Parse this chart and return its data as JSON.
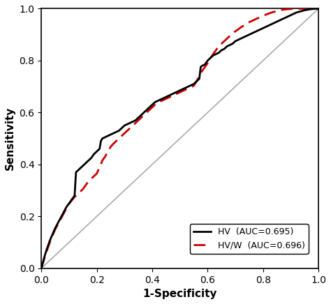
{
  "title": "",
  "xlabel": "1-Specificity",
  "ylabel": "Sensitivity",
  "xlim": [
    0.0,
    1.0
  ],
  "ylim": [
    0.0,
    1.0
  ],
  "xticks": [
    0.0,
    0.2,
    0.4,
    0.6,
    0.8,
    1.0
  ],
  "yticks": [
    0.0,
    0.2,
    0.4,
    0.6,
    0.8,
    1.0
  ],
  "diagonal_color": "#aaaaaa",
  "hv_color": "#000000",
  "hvw_color": "#cc0000",
  "hv_label": "HV  (AUC=0.695)",
  "hvw_label": "HV/W  (AUC=0.696)",
  "hv_linewidth": 2.0,
  "hvw_linewidth": 2.0,
  "background_color": "#ffffff",
  "legend_fontsize": 9,
  "axis_fontsize": 11,
  "tick_fontsize": 10,
  "hv_x": [
    0.0,
    0.005,
    0.01,
    0.015,
    0.02,
    0.025,
    0.03,
    0.035,
    0.04,
    0.045,
    0.05,
    0.06,
    0.07,
    0.08,
    0.09,
    0.1,
    0.11,
    0.12,
    0.125,
    0.13,
    0.14,
    0.15,
    0.16,
    0.17,
    0.175,
    0.18,
    0.19,
    0.2,
    0.21,
    0.215,
    0.22,
    0.23,
    0.24,
    0.25,
    0.26,
    0.27,
    0.28,
    0.29,
    0.3,
    0.31,
    0.32,
    0.33,
    0.34,
    0.35,
    0.36,
    0.37,
    0.38,
    0.39,
    0.4,
    0.41,
    0.42,
    0.43,
    0.44,
    0.45,
    0.46,
    0.47,
    0.48,
    0.49,
    0.5,
    0.51,
    0.52,
    0.53,
    0.54,
    0.55,
    0.56,
    0.57,
    0.575,
    0.58,
    0.59,
    0.6,
    0.61,
    0.62,
    0.63,
    0.64,
    0.65,
    0.66,
    0.67,
    0.68,
    0.69,
    0.7,
    0.71,
    0.72,
    0.73,
    0.74,
    0.75,
    0.76,
    0.77,
    0.78,
    0.79,
    0.8,
    0.81,
    0.82,
    0.83,
    0.84,
    0.85,
    0.86,
    0.87,
    0.88,
    0.89,
    0.9,
    0.91,
    0.92,
    0.93,
    0.94,
    0.95,
    0.96,
    0.97,
    0.98,
    0.99,
    1.0
  ],
  "hv_y": [
    0.0,
    0.02,
    0.04,
    0.058,
    0.075,
    0.09,
    0.105,
    0.118,
    0.13,
    0.143,
    0.155,
    0.175,
    0.195,
    0.215,
    0.235,
    0.25,
    0.265,
    0.28,
    0.37,
    0.375,
    0.385,
    0.395,
    0.405,
    0.415,
    0.42,
    0.425,
    0.44,
    0.45,
    0.46,
    0.49,
    0.5,
    0.505,
    0.51,
    0.515,
    0.52,
    0.525,
    0.53,
    0.54,
    0.55,
    0.555,
    0.56,
    0.565,
    0.57,
    0.58,
    0.59,
    0.6,
    0.61,
    0.62,
    0.63,
    0.64,
    0.645,
    0.65,
    0.655,
    0.66,
    0.665,
    0.67,
    0.675,
    0.68,
    0.685,
    0.69,
    0.695,
    0.7,
    0.705,
    0.71,
    0.72,
    0.73,
    0.775,
    0.78,
    0.785,
    0.8,
    0.81,
    0.82,
    0.825,
    0.83,
    0.84,
    0.845,
    0.855,
    0.86,
    0.865,
    0.875,
    0.88,
    0.885,
    0.89,
    0.895,
    0.9,
    0.905,
    0.91,
    0.915,
    0.92,
    0.925,
    0.93,
    0.935,
    0.94,
    0.945,
    0.95,
    0.955,
    0.96,
    0.965,
    0.97,
    0.975,
    0.98,
    0.985,
    0.988,
    0.991,
    0.994,
    0.996,
    0.998,
    0.999,
    1.0,
    1.0
  ],
  "hvw_x": [
    0.0,
    0.005,
    0.01,
    0.015,
    0.02,
    0.025,
    0.03,
    0.035,
    0.04,
    0.045,
    0.05,
    0.06,
    0.07,
    0.08,
    0.09,
    0.1,
    0.11,
    0.12,
    0.13,
    0.14,
    0.15,
    0.16,
    0.17,
    0.18,
    0.19,
    0.2,
    0.21,
    0.215,
    0.22,
    0.23,
    0.24,
    0.25,
    0.26,
    0.27,
    0.28,
    0.29,
    0.3,
    0.31,
    0.32,
    0.33,
    0.34,
    0.35,
    0.36,
    0.37,
    0.38,
    0.39,
    0.4,
    0.41,
    0.42,
    0.43,
    0.44,
    0.45,
    0.46,
    0.47,
    0.48,
    0.49,
    0.5,
    0.51,
    0.52,
    0.53,
    0.54,
    0.55,
    0.56,
    0.57,
    0.58,
    0.59,
    0.6,
    0.61,
    0.62,
    0.63,
    0.64,
    0.65,
    0.66,
    0.67,
    0.68,
    0.69,
    0.7,
    0.71,
    0.72,
    0.73,
    0.74,
    0.75,
    0.76,
    0.77,
    0.78,
    0.79,
    0.8,
    0.81,
    0.82,
    0.83,
    0.84,
    0.85,
    0.86,
    0.87,
    0.88,
    0.89,
    0.9,
    0.91,
    0.92,
    0.93,
    0.94,
    0.95,
    0.96,
    0.97,
    0.98,
    0.99,
    1.0
  ],
  "hvw_y": [
    0.0,
    0.018,
    0.035,
    0.052,
    0.068,
    0.083,
    0.098,
    0.112,
    0.125,
    0.138,
    0.15,
    0.17,
    0.19,
    0.21,
    0.23,
    0.248,
    0.262,
    0.275,
    0.285,
    0.295,
    0.305,
    0.32,
    0.335,
    0.345,
    0.355,
    0.365,
    0.39,
    0.4,
    0.415,
    0.43,
    0.45,
    0.468,
    0.48,
    0.49,
    0.5,
    0.51,
    0.52,
    0.53,
    0.54,
    0.55,
    0.56,
    0.57,
    0.58,
    0.59,
    0.6,
    0.61,
    0.62,
    0.63,
    0.638,
    0.643,
    0.648,
    0.653,
    0.658,
    0.663,
    0.668,
    0.673,
    0.678,
    0.683,
    0.688,
    0.693,
    0.698,
    0.703,
    0.72,
    0.74,
    0.76,
    0.775,
    0.79,
    0.81,
    0.825,
    0.84,
    0.855,
    0.865,
    0.875,
    0.885,
    0.895,
    0.905,
    0.913,
    0.92,
    0.928,
    0.935,
    0.942,
    0.948,
    0.953,
    0.958,
    0.963,
    0.967,
    0.972,
    0.977,
    0.981,
    0.985,
    0.988,
    0.991,
    0.994,
    0.996,
    0.997,
    0.998,
    0.999,
    0.9995,
    0.9998,
    0.9999,
    1.0,
    1.0,
    1.0,
    1.0,
    1.0,
    1.0,
    1.0
  ]
}
